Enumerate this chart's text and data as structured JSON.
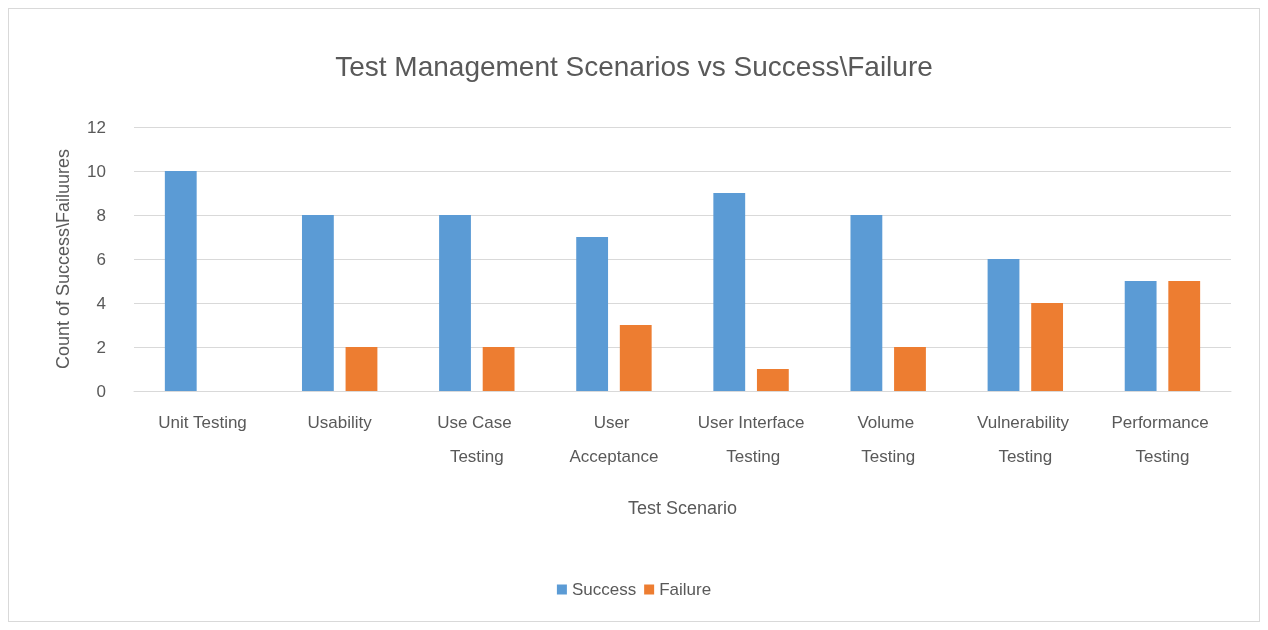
{
  "chart_data": {
    "type": "bar",
    "title": "Test Management Scenarios vs Success\\Failure",
    "xlabel": "Test Scenario",
    "ylabel": "Count of Success\\Failuures",
    "categories": [
      "Unit Testing",
      "Usability",
      "Use Case Testing",
      "User Acceptance",
      "User Interface Testing",
      "Volume Testing",
      "Vulnerability Testing",
      "Performance Testing"
    ],
    "series": [
      {
        "name": "Success",
        "color": "#5b9bd5",
        "values": [
          10,
          8,
          8,
          7,
          9,
          8,
          6,
          5
        ]
      },
      {
        "name": "Failure",
        "color": "#ed7d31",
        "values": [
          0,
          2,
          2,
          3,
          1,
          2,
          4,
          5
        ]
      }
    ],
    "ylim": [
      0,
      12
    ],
    "yticks": [
      0,
      2,
      4,
      6,
      8,
      10,
      12
    ],
    "grid": "y",
    "legend": "bottom"
  }
}
